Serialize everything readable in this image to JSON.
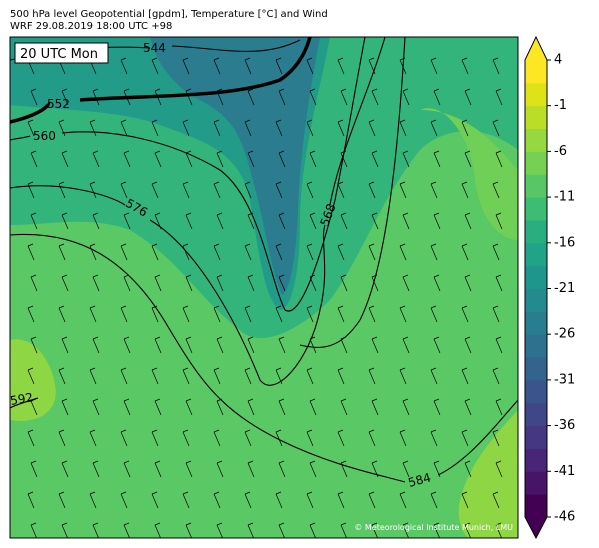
{
  "header": {
    "title": "500 hPa level Geopotential [gpdm], Temperature [°C] and Wind",
    "subtitle": "WRF 29.08.2019 18:00 UTC +98"
  },
  "map": {
    "time_label": "20 UTC Mon",
    "contour_labels": [
      "544",
      "552",
      "560",
      "576",
      "568",
      "584",
      "592"
    ],
    "credit": "© Meteorological Institute Munich, LMU"
  },
  "colorbar": {
    "lim": [
      -46,
      4
    ],
    "ticks": [
      4,
      -1,
      -6,
      -11,
      -16,
      -21,
      -26,
      -31,
      -36,
      -41,
      -46
    ],
    "colors": [
      "#440154",
      "#481467",
      "#482576",
      "#453781",
      "#3f4788",
      "#39558c",
      "#32648e",
      "#2d718e",
      "#287d8e",
      "#238a8d",
      "#1f968b",
      "#20a386",
      "#29af7f",
      "#3dbc74",
      "#56c667",
      "#75d054",
      "#95d840",
      "#bade28",
      "#dde318",
      "#fde725"
    ]
  }
}
